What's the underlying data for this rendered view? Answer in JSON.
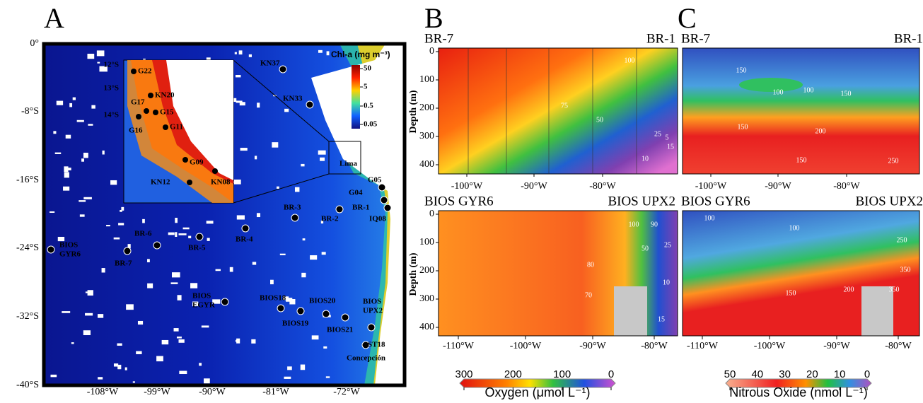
{
  "panel_a": {
    "label": "A",
    "lat_ticks": [
      "0°",
      "-8°S",
      "-16°S",
      "-24°S",
      "-32°S",
      "-40°S"
    ],
    "lon_ticks": [
      "-108°W",
      "-99°W",
      "-90°W",
      "-81°W",
      "-72°W"
    ],
    "colorbar": {
      "title": "Chl-a (mg m⁻³)",
      "ticks": [
        50,
        5,
        0.5,
        0.05
      ]
    },
    "stations": [
      {
        "label": [
          "KN37"
        ]
      },
      {
        "label": [
          "KN33"
        ]
      },
      {
        "label": [
          "Lima"
        ]
      },
      {
        "label": [
          "G05"
        ]
      },
      {
        "label": [
          "G04"
        ]
      },
      {
        "label": [
          "BR-1"
        ]
      },
      {
        "label": [
          "IQ08"
        ]
      },
      {
        "label": [
          "BR-3"
        ]
      },
      {
        "label": [
          "BR-2"
        ]
      },
      {
        "label": [
          "BR-4"
        ]
      },
      {
        "label": [
          "BR-5"
        ]
      },
      {
        "label": [
          "BR-6"
        ]
      },
      {
        "label": [
          "BR-7"
        ]
      },
      {
        "label": [
          "BIOS",
          "GYR6"
        ]
      },
      {
        "label": [
          "BIOS",
          "EGYR"
        ]
      },
      {
        "label": [
          "BIOS18"
        ]
      },
      {
        "label": [
          "BIOS20"
        ]
      },
      {
        "label": [
          "BIOS",
          "UPX2"
        ]
      },
      {
        "label": [
          "BIOS19"
        ]
      },
      {
        "label": [
          "BIOS21"
        ]
      },
      {
        "label": [
          "ST18"
        ]
      },
      {
        "label": [
          "Concepción"
        ]
      }
    ],
    "inset": {
      "lat_ticks": [
        "12°S",
        "13°S",
        "14°S"
      ],
      "stations": [
        "G22",
        "KN20",
        "G17",
        "G15",
        "G16",
        "G11",
        "G09",
        "KN12",
        "KN08"
      ]
    }
  },
  "panel_b": {
    "label": "B",
    "top": {
      "left": "BR-7",
      "right": "BR-1",
      "y_label": "Depth (m)",
      "yticks": [
        0,
        100,
        200,
        300,
        400
      ],
      "xticks": [
        "-100°W",
        "-90°W",
        "-80°W"
      ],
      "contour_labels": [
        100,
        75,
        50,
        25,
        15,
        10,
        5
      ]
    },
    "bottom": {
      "left": "BIOS GYR6",
      "right": "BIOS UPX2",
      "y_label": "Depth (m)",
      "yticks": [
        0,
        100,
        200,
        300,
        400
      ],
      "xticks": [
        "-110°W",
        "-100°W",
        "-90°W",
        "-80°W"
      ],
      "contour_labels": [
        100,
        90,
        80,
        70,
        50,
        25,
        10,
        15
      ]
    },
    "colorbar": {
      "title": "Oxygen (μmol L⁻¹)",
      "ticks": [
        300,
        200,
        100,
        0
      ]
    }
  },
  "panel_c": {
    "label": "C",
    "top": {
      "left": "BR-7",
      "right": "BR-1",
      "xticks": [
        "-100°W",
        "-90°W",
        "-80°W"
      ],
      "contour_labels": [
        100,
        150,
        100,
        150,
        150,
        200,
        150,
        250
      ]
    },
    "bottom": {
      "left": "BIOS GYR6",
      "right": "BIOS UPX2",
      "xticks": [
        "-110°W",
        "-100°W",
        "-90°W",
        "-80°W"
      ],
      "contour_labels": [
        100,
        100,
        150,
        200,
        250,
        350,
        350
      ]
    },
    "colorbar": {
      "title": "Nitrous Oxide (nmol L⁻¹)",
      "ticks": [
        50,
        40,
        30,
        20,
        10,
        0
      ]
    }
  }
}
